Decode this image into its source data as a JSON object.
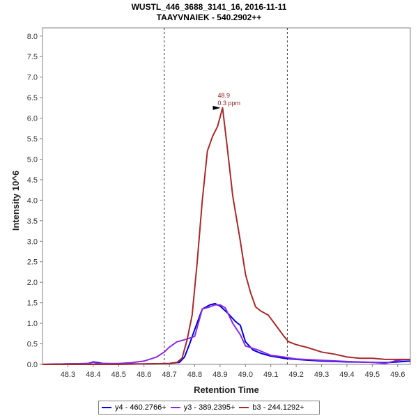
{
  "chart_data": {
    "type": "line",
    "title": "WUSTL_446_3688_3141_16, 2016-11-11",
    "subtitle": "TAAYVNAIEK - 540.2902++",
    "xlabel": "Retention Time",
    "ylabel": "Intensity 10^6",
    "xlim": [
      48.2,
      49.65
    ],
    "ylim": [
      0,
      8.2
    ],
    "x_ticks": [
      "48.3",
      "48.4",
      "48.5",
      "48.6",
      "48.7",
      "48.8",
      "48.9",
      "49.0",
      "49.1",
      "49.2",
      "49.3",
      "49.4",
      "49.5",
      "49.6"
    ],
    "y_ticks": [
      "0.0",
      "0.5",
      "1.0",
      "1.5",
      "2.0",
      "2.5",
      "3.0",
      "3.5",
      "4.0",
      "4.5",
      "5.0",
      "5.5",
      "6.0",
      "6.5",
      "7.0",
      "7.5",
      "8.0"
    ],
    "integration_bounds": [
      48.68,
      49.165
    ],
    "peak_annotation": {
      "x": 48.91,
      "y": 6.25,
      "rt_label": "48.9",
      "ppm_label": "0.3 ppm",
      "color": "#8b1a1a"
    },
    "series": [
      {
        "name": "y4 - 460.2766+",
        "color": "#0000dd",
        "x": [
          48.2,
          48.38,
          48.4,
          48.42,
          48.44,
          48.5,
          48.6,
          48.7,
          48.74,
          48.76,
          48.78,
          48.8,
          48.83,
          48.86,
          48.88,
          48.9,
          48.93,
          48.96,
          48.98,
          49.0,
          49.03,
          49.06,
          49.1,
          49.15,
          49.2,
          49.3,
          49.4,
          49.5,
          49.55,
          49.6,
          49.65
        ],
        "y": [
          0.0,
          0.02,
          0.06,
          0.04,
          0.02,
          0.01,
          0.01,
          0.02,
          0.05,
          0.18,
          0.5,
          0.85,
          1.35,
          1.45,
          1.48,
          1.42,
          1.25,
          1.05,
          0.95,
          0.55,
          0.35,
          0.27,
          0.2,
          0.15,
          0.12,
          0.08,
          0.06,
          0.05,
          0.04,
          0.06,
          0.08
        ]
      },
      {
        "name": "y3 - 389.2395+",
        "color": "#8a2be2",
        "x": [
          48.2,
          48.38,
          48.4,
          48.42,
          48.5,
          48.55,
          48.6,
          48.65,
          48.68,
          48.7,
          48.73,
          48.76,
          48.8,
          48.83,
          48.86,
          48.88,
          48.9,
          48.92,
          48.95,
          48.98,
          49.0,
          49.05,
          49.1,
          49.15,
          49.2,
          49.3,
          49.4,
          49.5,
          49.55,
          49.6,
          49.65
        ],
        "y": [
          0.0,
          0.02,
          0.05,
          0.02,
          0.02,
          0.04,
          0.08,
          0.18,
          0.3,
          0.42,
          0.55,
          0.6,
          0.68,
          1.35,
          1.4,
          1.45,
          1.45,
          1.38,
          1.0,
          0.72,
          0.45,
          0.35,
          0.22,
          0.18,
          0.13,
          0.1,
          0.07,
          0.05,
          0.02,
          0.1,
          0.12
        ]
      },
      {
        "name": "b3 - 244.1292+",
        "color": "#a52a2a",
        "x": [
          48.2,
          48.5,
          48.6,
          48.7,
          48.73,
          48.75,
          48.77,
          48.79,
          48.81,
          48.83,
          48.85,
          48.87,
          48.89,
          48.91,
          48.93,
          48.95,
          48.98,
          49.0,
          49.02,
          49.04,
          49.06,
          49.09,
          49.12,
          49.15,
          49.17,
          49.2,
          49.25,
          49.3,
          49.35,
          49.4,
          49.45,
          49.5,
          49.55,
          49.6,
          49.65
        ],
        "y": [
          0.0,
          0.0,
          0.01,
          0.02,
          0.05,
          0.15,
          0.6,
          1.2,
          2.5,
          4.0,
          5.2,
          5.55,
          5.8,
          6.25,
          5.2,
          4.1,
          3.0,
          2.2,
          1.75,
          1.4,
          1.3,
          1.2,
          0.95,
          0.7,
          0.55,
          0.48,
          0.4,
          0.3,
          0.25,
          0.18,
          0.15,
          0.15,
          0.12,
          0.12,
          0.12
        ]
      }
    ],
    "legend_placement": "bottom"
  }
}
